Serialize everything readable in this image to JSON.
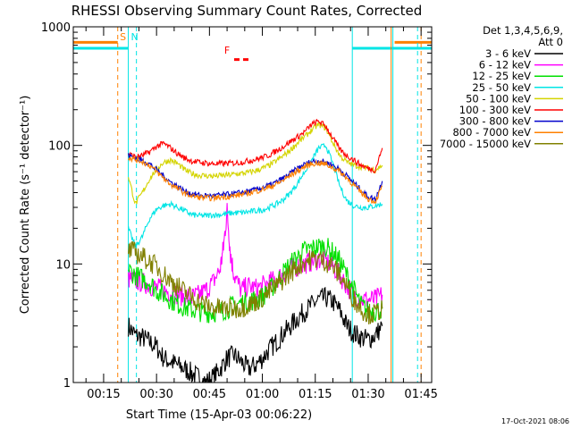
{
  "chart_data": {
    "type": "line",
    "title": "RHESSI Observing Summary Count Rates, Corrected",
    "xlabel": "Start Time (15-Apr-03 00:06:22)",
    "ylabel": "Corrected Count Rate (s⁻¹ detector⁻¹)",
    "yscale": "log",
    "ylim": [
      1,
      1000
    ],
    "xlim_minutes": [
      6.4,
      108
    ],
    "x_ticks": [
      {
        "t": 15,
        "label": "00:15"
      },
      {
        "t": 30,
        "label": "00:30"
      },
      {
        "t": 45,
        "label": "00:45"
      },
      {
        "t": 60,
        "label": "01:00"
      },
      {
        "t": 75,
        "label": "01:15"
      },
      {
        "t": 90,
        "label": "01:30"
      },
      {
        "t": 105,
        "label": "01:45"
      }
    ],
    "y_ticks": [
      {
        "v": 1,
        "label": "1"
      },
      {
        "v": 10,
        "label": "10"
      },
      {
        "v": 100,
        "label": "100"
      },
      {
        "v": 1000,
        "label": "1000"
      }
    ],
    "legend": {
      "placement": "outside-right",
      "header": [
        "Det 1,3,4,5,6,9,",
        "Att 0"
      ]
    },
    "footer": "17-Oct-2021 08:06",
    "markers": [
      {
        "label": "S",
        "color": "#ff8000",
        "t": 20.5
      },
      {
        "label": "N",
        "color": "#00e5e5",
        "t": 23.8
      },
      {
        "label": "F",
        "color": "#ff0000",
        "t": 50
      }
    ],
    "series": [
      {
        "name": "3 - 6 keV",
        "color": "#000000",
        "t": [
          22,
          24,
          26,
          28,
          30,
          32,
          34,
          36,
          38,
          40,
          42,
          44,
          46,
          48,
          50,
          52,
          54,
          56,
          58,
          60,
          62,
          64,
          66,
          68,
          70,
          72,
          74,
          76,
          78,
          80,
          82,
          84,
          86,
          88,
          90,
          92,
          94
        ],
        "values": [
          3,
          2.5,
          2.4,
          2.2,
          2,
          1.6,
          1.5,
          1.4,
          1.3,
          1.2,
          1.1,
          1,
          1.1,
          1.3,
          1.6,
          1.7,
          1.5,
          1.3,
          1.4,
          1.6,
          1.9,
          2.2,
          2.6,
          3,
          3.5,
          4,
          4.5,
          5,
          5.2,
          4.8,
          4,
          3,
          2.6,
          2.4,
          2.3,
          2.5,
          3
        ]
      },
      {
        "name": "6 - 12 keV",
        "color": "#ff00ff",
        "t": [
          22,
          24,
          26,
          28,
          30,
          32,
          34,
          36,
          38,
          40,
          42,
          44,
          46,
          48,
          49,
          50,
          51,
          52,
          54,
          56,
          58,
          60,
          62,
          64,
          66,
          68,
          70,
          72,
          74,
          76,
          78,
          80,
          82,
          84,
          86,
          88,
          90,
          92,
          94
        ],
        "values": [
          7.5,
          7.2,
          7,
          6.6,
          6.3,
          6,
          5.8,
          5.5,
          5.3,
          5.2,
          5.5,
          6,
          7,
          9,
          14,
          28,
          12,
          8,
          6,
          6.5,
          6.2,
          6.5,
          7,
          7.5,
          8.2,
          9,
          9.5,
          10,
          10.5,
          11,
          10.5,
          9.5,
          8,
          6.5,
          5.5,
          5,
          5,
          5,
          5.5
        ]
      },
      {
        "name": "12 - 25 keV",
        "color": "#00e000",
        "t": [
          22,
          24,
          26,
          28,
          30,
          32,
          34,
          36,
          38,
          40,
          42,
          44,
          46,
          48,
          50,
          52,
          54,
          56,
          58,
          60,
          62,
          64,
          66,
          68,
          70,
          72,
          74,
          76,
          78,
          80,
          82,
          84,
          86,
          88,
          90,
          92,
          94
        ],
        "values": [
          9,
          8,
          7.5,
          7,
          6,
          5.5,
          5,
          4.6,
          4.3,
          4.1,
          4,
          3.9,
          3.9,
          4,
          4.2,
          4.5,
          4.7,
          4.8,
          5,
          5.3,
          6,
          7,
          8.5,
          10,
          11.5,
          13,
          13.5,
          14,
          14,
          12.5,
          10.5,
          8,
          6,
          4.5,
          4,
          4,
          4.2
        ]
      },
      {
        "name": "25 - 50 keV",
        "color": "#00e5e5",
        "t": [
          22,
          24,
          26,
          28,
          30,
          32,
          34,
          36,
          38,
          40,
          42,
          44,
          46,
          48,
          50,
          52,
          54,
          56,
          58,
          60,
          62,
          64,
          66,
          68,
          70,
          72,
          74,
          76,
          78,
          80,
          82,
          84,
          86,
          88,
          90,
          92,
          94
        ],
        "values": [
          20,
          14,
          17,
          24,
          29,
          31,
          32,
          30,
          28,
          26,
          25.5,
          25.5,
          26,
          26,
          26.5,
          27,
          27,
          27.5,
          28,
          28.5,
          30,
          32,
          35,
          40,
          48,
          60,
          75,
          95,
          100,
          70,
          45,
          34,
          31,
          30,
          30,
          31,
          32
        ]
      },
      {
        "name": "50 - 100 keV",
        "color": "#d4d400",
        "t": [
          22,
          24,
          26,
          28,
          30,
          32,
          34,
          36,
          38,
          40,
          42,
          44,
          46,
          48,
          50,
          52,
          54,
          56,
          58,
          60,
          62,
          64,
          66,
          68,
          70,
          72,
          74,
          76,
          78,
          80,
          82,
          84,
          86,
          88,
          90,
          92,
          94
        ],
        "values": [
          55,
          32,
          40,
          52,
          63,
          72,
          75,
          70,
          62,
          58,
          56,
          55.5,
          55,
          55.5,
          56,
          57,
          58,
          59,
          61,
          64,
          68,
          74,
          82,
          92,
          105,
          118,
          135,
          150,
          140,
          105,
          82,
          72,
          68,
          66,
          64,
          62,
          68
        ]
      },
      {
        "name": "100 - 300 keV",
        "color": "#ff0000",
        "t": [
          22,
          24,
          26,
          28,
          30,
          32,
          34,
          36,
          38,
          40,
          42,
          44,
          46,
          48,
          50,
          52,
          54,
          56,
          58,
          60,
          62,
          64,
          66,
          68,
          70,
          72,
          74,
          76,
          78,
          80,
          82,
          84,
          86,
          88,
          90,
          92,
          94
        ],
        "values": [
          85,
          80,
          82,
          88,
          98,
          104,
          95,
          85,
          78,
          74,
          72,
          71,
          70,
          70,
          70.5,
          71,
          72,
          74,
          76,
          79,
          83,
          90,
          98,
          108,
          118,
          130,
          150,
          160,
          145,
          115,
          92,
          82,
          75,
          68,
          64,
          62,
          95
        ]
      },
      {
        "name": "300 - 800 keV",
        "color": "#0000cc",
        "t": [
          22,
          24,
          26,
          28,
          30,
          32,
          34,
          36,
          38,
          40,
          42,
          44,
          46,
          48,
          50,
          52,
          54,
          56,
          58,
          60,
          62,
          64,
          66,
          68,
          70,
          72,
          74,
          76,
          78,
          80,
          82,
          84,
          86,
          88,
          90,
          92,
          94
        ],
        "values": [
          82,
          78,
          75,
          70,
          62,
          55,
          49,
          45,
          41,
          39,
          38,
          37.5,
          37.5,
          38,
          38.5,
          39,
          40,
          41,
          42,
          44,
          46,
          49,
          53,
          58,
          64,
          69,
          73,
          74,
          72,
          68,
          62,
          55,
          48,
          42,
          37,
          35,
          50
        ]
      },
      {
        "name": "800 - 7000 keV",
        "color": "#ff8000",
        "t": [
          22,
          24,
          26,
          28,
          30,
          32,
          34,
          36,
          38,
          40,
          42,
          44,
          46,
          48,
          50,
          52,
          54,
          56,
          58,
          60,
          62,
          64,
          66,
          68,
          70,
          72,
          74,
          76,
          78,
          80,
          82,
          84,
          86,
          88,
          90,
          92,
          94
        ],
        "values": [
          79,
          76,
          73,
          68,
          60,
          53,
          47,
          43,
          39.5,
          37.5,
          36.5,
          36,
          36,
          36.5,
          37,
          37.5,
          38.5,
          39.5,
          41,
          42.5,
          44.5,
          47,
          51,
          56,
          61,
          66,
          70,
          71,
          69,
          65,
          60,
          53,
          46,
          40,
          35.5,
          33.5,
          45
        ]
      },
      {
        "name": "7000 - 15000 keV",
        "color": "#808000",
        "t": [
          22,
          24,
          26,
          28,
          30,
          32,
          34,
          36,
          38,
          40,
          42,
          44,
          46,
          48,
          50,
          52,
          54,
          56,
          58,
          60,
          62,
          64,
          66,
          68,
          70,
          72,
          74,
          76,
          78,
          80,
          82,
          84,
          86,
          88,
          90,
          92,
          94
        ],
        "values": [
          13,
          12.5,
          11.5,
          10.5,
          9.5,
          8.2,
          7.2,
          6.5,
          5.8,
          5.3,
          4.8,
          4.5,
          4.3,
          4.2,
          4.2,
          4.2,
          4.3,
          4.5,
          4.8,
          5.2,
          5.8,
          6.5,
          7.5,
          8.5,
          9.5,
          10.5,
          11,
          11,
          10.5,
          9.5,
          8,
          6.5,
          5,
          4.2,
          3.8,
          3.8,
          4.2
        ]
      }
    ],
    "state_bars": [
      {
        "color": "#ff8000",
        "t_start": 6.4,
        "t_end": 19,
        "level": 740
      },
      {
        "color": "#ff8000",
        "t_start": 97.5,
        "t_end": 108,
        "level": 740
      },
      {
        "color": "#00e5e5",
        "t_start": 6.4,
        "t_end": 22,
        "level": 660
      },
      {
        "color": "#00e5e5",
        "t_start": 85.5,
        "t_end": 108,
        "level": 660
      }
    ],
    "vertical_lines": [
      {
        "color": "#ff8000",
        "t": 19,
        "dashed": true
      },
      {
        "color": "#00e5e5",
        "t": 22,
        "dashed": false
      },
      {
        "color": "#00e5e5",
        "t": 24.3,
        "dashed": true
      },
      {
        "color": "#00e5e5",
        "t": 85.5,
        "dashed": false
      },
      {
        "color": "#ff8000",
        "t": 96.5,
        "dashed": false
      },
      {
        "color": "#00e5e5",
        "t": 97,
        "dashed": false
      },
      {
        "color": "#00e5e5",
        "t": 104,
        "dashed": true
      },
      {
        "color": "#ff8000",
        "t": 105,
        "dashed": true
      }
    ],
    "flare_marker": {
      "color": "#ff0000",
      "t_start": 52,
      "t_end": 57,
      "level": 530
    }
  }
}
